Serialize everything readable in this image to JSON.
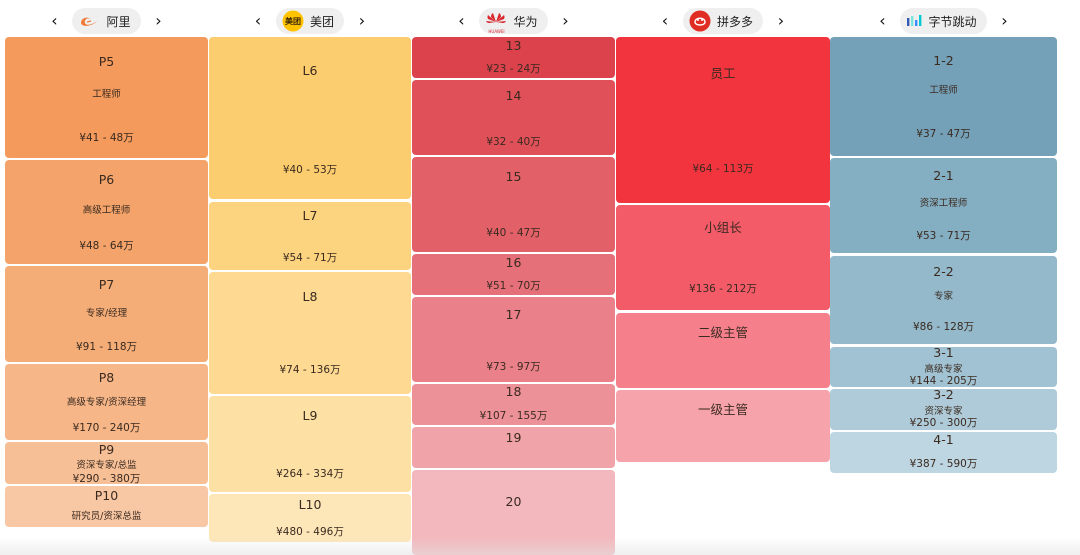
{
  "companies": [
    {
      "name": "阿里",
      "logo_icon": "alibaba-logo-icon",
      "accent": "#f0703a",
      "levels": [
        {
          "level": "P5",
          "title": "工程师",
          "salary": "¥41 - 48万",
          "color": "#f39a5c"
        },
        {
          "level": "P6",
          "title": "高级工程师",
          "salary": "¥48 - 64万",
          "color": "#f4a46a"
        },
        {
          "level": "P7",
          "title": "专家/经理",
          "salary": "¥91 - 118万",
          "color": "#f5ad78"
        },
        {
          "level": "P8",
          "title": "高级专家/资深经理",
          "salary": "¥170 - 240万",
          "color": "#f6b688"
        },
        {
          "level": "P9",
          "title": "资深专家/总监",
          "salary": "¥290 - 380万",
          "color": "#f7bf96"
        },
        {
          "level": "P10",
          "title": "研究员/资深总监",
          "salary": "",
          "color": "#f8c7a3"
        }
      ]
    },
    {
      "name": "美团",
      "logo_icon": "meituan-logo-icon",
      "logo_text": "美团",
      "accent": "#ffc300",
      "levels": [
        {
          "level": "L6",
          "title": "",
          "salary": "¥40 - 53万",
          "color": "#fccd6e"
        },
        {
          "level": "L7",
          "title": "",
          "salary": "¥54 - 71万",
          "color": "#fcd37f"
        },
        {
          "level": "L8",
          "title": "",
          "salary": "¥74 - 136万",
          "color": "#fdd991"
        },
        {
          "level": "L9",
          "title": "",
          "salary": "¥264 - 334万",
          "color": "#fde0a4"
        },
        {
          "level": "L10",
          "title": "",
          "salary": "¥480 - 496万",
          "color": "#fde7b8"
        }
      ]
    },
    {
      "name": "华为",
      "logo_icon": "huawei-logo-icon",
      "logo_text": "HUAWEI",
      "accent": "#d9272e",
      "levels": [
        {
          "level": "13",
          "title": "",
          "salary": "¥23 - 24万",
          "color": "#dc424c"
        },
        {
          "level": "14",
          "title": "",
          "salary": "¥32 - 40万",
          "color": "#df5058"
        },
        {
          "level": "15",
          "title": "",
          "salary": "¥40 - 47万",
          "color": "#e26068"
        },
        {
          "level": "16",
          "title": "",
          "salary": "¥51 - 70万",
          "color": "#e67079"
        },
        {
          "level": "17",
          "title": "",
          "salary": "¥73 - 97万",
          "color": "#ea8089"
        },
        {
          "level": "18",
          "title": "",
          "salary": "¥107 - 155万",
          "color": "#ed9199"
        },
        {
          "level": "19",
          "title": "",
          "salary": "",
          "color": "#f0a3a9"
        },
        {
          "level": "20",
          "title": "",
          "salary": "",
          "color": "#f3b8bd"
        }
      ]
    },
    {
      "name": "拼多多",
      "logo_icon": "pinduoduo-logo-icon",
      "accent": "#e02e24",
      "levels": [
        {
          "level": "员工",
          "title": "",
          "salary": "¥64 - 113万",
          "color": "#f2343f"
        },
        {
          "level": "小组长",
          "title": "",
          "salary": "¥136 - 212万",
          "color": "#f45b68"
        },
        {
          "level": "二级主管",
          "title": "",
          "salary": "",
          "color": "#f57f8a"
        },
        {
          "level": "一级主管",
          "title": "",
          "salary": "",
          "color": "#f7a3ab"
        }
      ]
    },
    {
      "name": "字节跳动",
      "logo_icon": "bytedance-logo-icon",
      "accent": "#3c8cff",
      "levels": [
        {
          "level": "1-2",
          "title": "工程师",
          "salary": "¥37 - 47万",
          "color": "#74a1b8"
        },
        {
          "level": "2-1",
          "title": "资深工程师",
          "salary": "¥53 - 71万",
          "color": "#84aec2"
        },
        {
          "level": "2-2",
          "title": "专家",
          "salary": "¥86 - 128万",
          "color": "#93b9cb"
        },
        {
          "level": "3-1",
          "title": "高级专家",
          "salary": "¥144 - 205万",
          "color": "#a1c2d2"
        },
        {
          "level": "3-2",
          "title": "资深专家",
          "salary": "¥250 - 300万",
          "color": "#afcbd9"
        },
        {
          "level": "4-1",
          "title": "",
          "salary": "¥387 - 590万",
          "color": "#bed6e1"
        }
      ]
    }
  ],
  "nav": {
    "prev_icon": "chevron-left-icon",
    "next_icon": "chevron-right-icon",
    "prev_glyph": "‹",
    "next_glyph": "›"
  }
}
